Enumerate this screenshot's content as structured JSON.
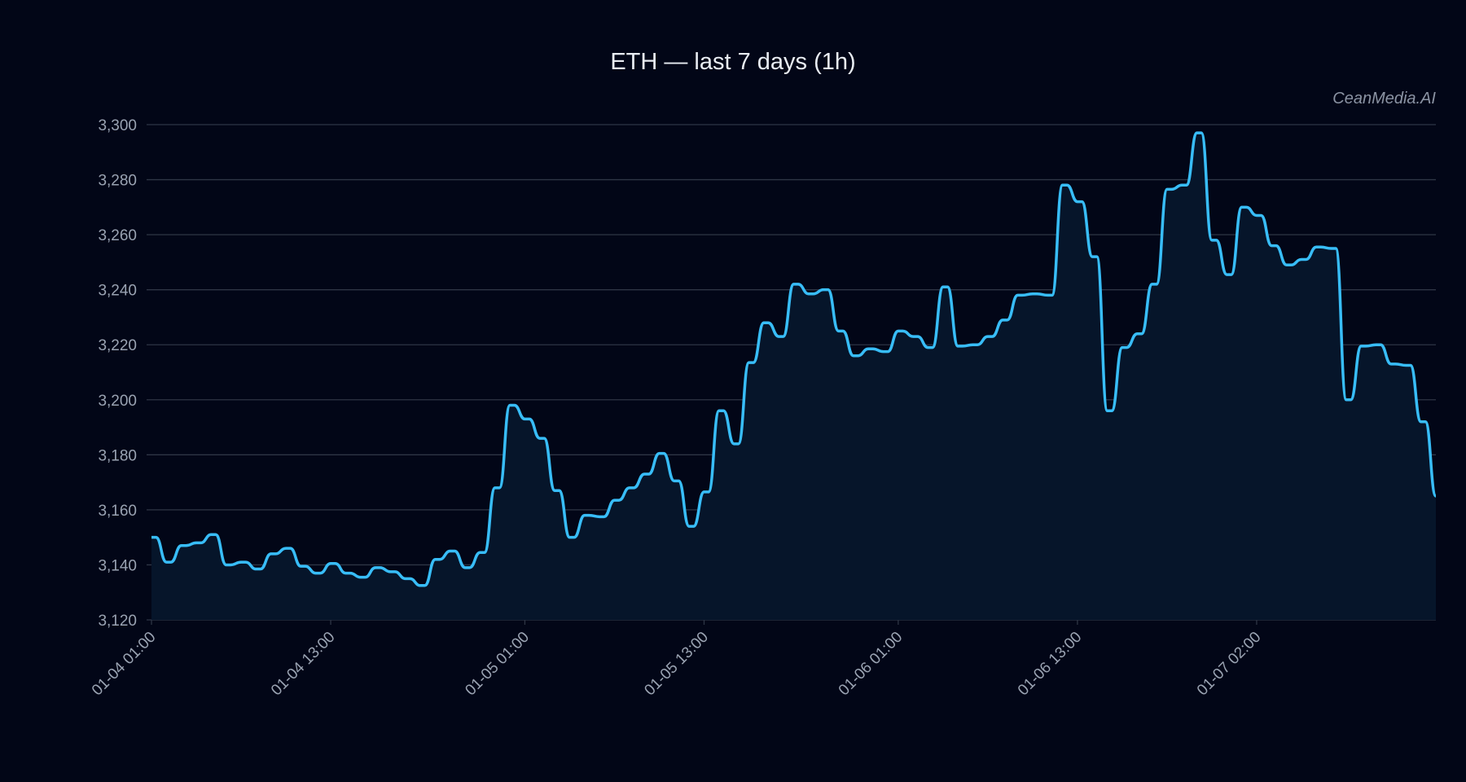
{
  "chart_data": {
    "type": "line",
    "title": "ETH — last 7 days (1h)",
    "watermark": "CeanMedia.AI",
    "xlabel": "",
    "ylabel": "",
    "ylim": [
      3120,
      3300
    ],
    "yticks": [
      3120,
      3140,
      3160,
      3180,
      3200,
      3220,
      3240,
      3260,
      3280,
      3300
    ],
    "ytick_labels": [
      "3,120",
      "3,140",
      "3,160",
      "3,180",
      "3,200",
      "3,220",
      "3,240",
      "3,260",
      "3,280",
      "3,300"
    ],
    "xticks": [
      {
        "index": 0,
        "label": "01-04 01:00"
      },
      {
        "index": 12,
        "label": "01-04 13:00"
      },
      {
        "index": 25,
        "label": "01-05 01:00"
      },
      {
        "index": 37,
        "label": "01-05 13:00"
      },
      {
        "index": 50,
        "label": "01-06 01:00"
      },
      {
        "index": 62,
        "label": "01-06 13:00"
      },
      {
        "index": 74,
        "label": "01-07 02:00"
      }
    ],
    "grid": true,
    "series": [
      {
        "name": "ETH",
        "color": "#38bdf8",
        "fill": "#06152a",
        "values": [
          3150,
          3141,
          3147,
          3148,
          3151,
          3140,
          3141,
          3138.5,
          3144,
          3146,
          3139.5,
          3137,
          3140.5,
          3137,
          3135.5,
          3139,
          3137.5,
          3135,
          3132.5,
          3142,
          3145,
          3139,
          3144.5,
          3168,
          3198,
          3193,
          3186,
          3167,
          3150,
          3158,
          3157.5,
          3163.5,
          3168,
          3173,
          3180.5,
          3170.5,
          3154,
          3166.5,
          3196,
          3184,
          3213.5,
          3228,
          3223,
          3242,
          3238.5,
          3240,
          3225,
          3216,
          3218.5,
          3217.5,
          3225,
          3223,
          3219,
          3241,
          3219.5,
          3220,
          3223,
          3229,
          3238,
          3238.5,
          3238,
          3278,
          3272,
          3252,
          3196,
          3219,
          3224,
          3242,
          3276.5,
          3278,
          3297,
          3258,
          3245.5,
          3270,
          3267,
          3256,
          3249,
          3251,
          3255.5,
          3255,
          3200,
          3219.5,
          3220,
          3213,
          3212.5,
          3192,
          3165
        ]
      }
    ]
  },
  "colors": {
    "background": "#020617",
    "grid": "#2e3545",
    "text": "#9aa3b2"
  }
}
